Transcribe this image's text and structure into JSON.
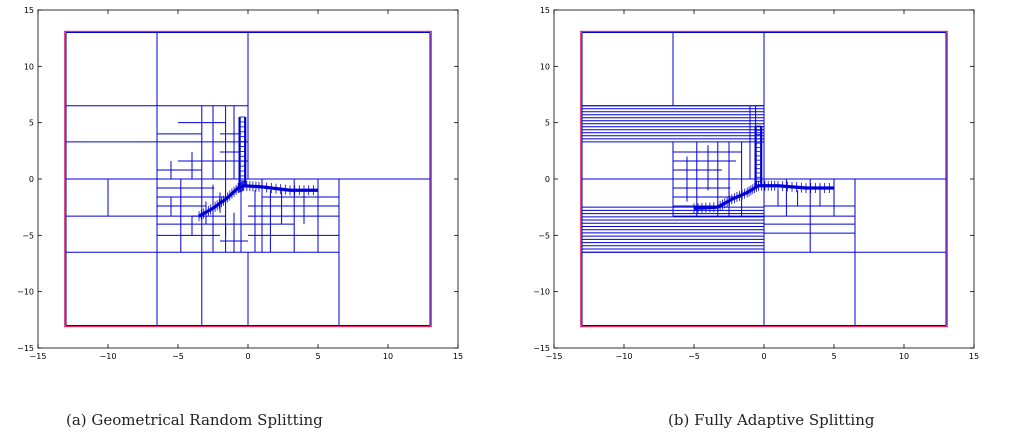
{
  "figures": [
    {
      "caption": "(a)  Geometrical Random Splitting",
      "chart_data": {
        "type": "diagram",
        "xlim": [
          -15,
          15
        ],
        "ylim": [
          -15,
          15
        ],
        "xticks": [
          -15,
          -10,
          -5,
          0,
          5,
          10,
          15
        ],
        "yticks": [
          -15,
          -10,
          -5,
          0,
          5,
          10,
          15
        ],
        "domain_boundary": {
          "color": "#e0003c",
          "rect": [
            -13,
            -13,
            13,
            13
          ]
        },
        "grid_color": "#0000d6",
        "segments": [
          [
            -13,
            -13,
            13,
            -13
          ],
          [
            13,
            -13,
            13,
            13
          ],
          [
            13,
            13,
            -13,
            13
          ],
          [
            -13,
            13,
            -13,
            -13
          ],
          [
            -6.5,
            -13,
            -6.5,
            13
          ],
          [
            0,
            13,
            0,
            0
          ],
          [
            -13,
            0,
            13,
            0
          ],
          [
            -13,
            6.5,
            0,
            6.5
          ],
          [
            -13,
            3.3,
            -6.5,
            3.3
          ],
          [
            -13,
            -6.5,
            6.5,
            -6.5
          ],
          [
            -10,
            0,
            -10,
            -3.3
          ],
          [
            -13,
            -3.3,
            -3.3,
            -3.3
          ],
          [
            -6.5,
            -3.3,
            -6.5,
            -6.5
          ],
          [
            -3.3,
            -6.5,
            -3.3,
            -13
          ],
          [
            0,
            -6.5,
            0,
            -13
          ],
          [
            6.5,
            0,
            6.5,
            -13
          ],
          [
            -6.5,
            -1.6,
            -1.6,
            -1.6
          ],
          [
            -6.5,
            -4,
            0,
            -4
          ],
          [
            -6.5,
            -5,
            -2,
            -5
          ],
          [
            -4.8,
            0,
            -4.8,
            -6.5
          ],
          [
            -3.3,
            6.5,
            -3.3,
            -6.5
          ],
          [
            -1.6,
            6.5,
            -1.6,
            -6.5
          ],
          [
            -5,
            5,
            -1.6,
            5
          ],
          [
            -6.5,
            4,
            -3.3,
            4
          ],
          [
            -6.5,
            3.3,
            0,
            3.3
          ],
          [
            -5,
            1.6,
            0,
            1.6
          ],
          [
            -6.5,
            0.8,
            -3.3,
            0.8
          ],
          [
            -2.5,
            6.5,
            -2.5,
            0
          ],
          [
            -4,
            2.4,
            -4,
            0
          ],
          [
            -5.5,
            1.6,
            -5.5,
            0
          ],
          [
            -2,
            4,
            -0.5,
            4
          ],
          [
            -1,
            6.5,
            -1,
            0
          ],
          [
            -2,
            2.4,
            -0.6,
            2.4
          ],
          [
            -6.5,
            -2.4,
            -3,
            -2.4
          ],
          [
            -5.5,
            -1.6,
            -5.5,
            -3.3
          ],
          [
            -2.5,
            -0.5,
            -2.5,
            -6.5
          ],
          [
            -1.6,
            -4,
            -1.6,
            -5
          ],
          [
            -4,
            -3.3,
            -4,
            -5
          ],
          [
            -2,
            -5.5,
            0,
            -5.5
          ],
          [
            -1,
            -3,
            -1,
            -6.5
          ],
          [
            -0.5,
            -1,
            -0.5,
            -6.5
          ],
          [
            0.5,
            -1,
            0.5,
            -6.5
          ],
          [
            1,
            0,
            1,
            -6.5
          ],
          [
            1.6,
            -1,
            1.6,
            -6.5
          ],
          [
            2.4,
            -1,
            2.4,
            -4
          ],
          [
            3.3,
            0,
            3.3,
            -6.5
          ],
          [
            4,
            -1,
            4,
            -4
          ],
          [
            5,
            0,
            5,
            -6.5
          ],
          [
            0,
            -2.4,
            6.5,
            -2.4
          ],
          [
            0,
            -3.3,
            6.5,
            -3.3
          ],
          [
            0,
            -4,
            3.3,
            -4
          ],
          [
            0,
            -5,
            6.5,
            -5
          ],
          [
            1,
            -1.6,
            6.5,
            -1.6
          ],
          [
            -6.5,
            -0.8,
            -2.4,
            -0.8
          ],
          [
            -4,
            -3.3,
            -1.6,
            -3.3
          ],
          [
            -3,
            -2,
            -3,
            -4
          ],
          [
            -2,
            -1.2,
            -2,
            -3
          ]
        ],
        "dense_path": [
          [
            -3.5,
            -3.3
          ],
          [
            -2.5,
            -2.6
          ],
          [
            -1.6,
            -1.8
          ],
          [
            -0.7,
            -0.8
          ],
          [
            -0.3,
            -0.6
          ],
          [
            1.0,
            -0.7
          ],
          [
            3.0,
            -1.0
          ],
          [
            5.0,
            -1.0
          ]
        ],
        "dense_vertical": [
          [
            -0.4,
            -0.6
          ],
          [
            -0.4,
            5.5
          ]
        ],
        "dense_vertical_x": [
          -0.6,
          -0.2
        ]
      }
    },
    {
      "caption": "(b)  Fully Adaptive Splitting",
      "chart_data": {
        "type": "diagram",
        "xlim": [
          -15,
          15
        ],
        "ylim": [
          -15,
          15
        ],
        "xticks": [
          -15,
          -10,
          -5,
          0,
          5,
          10,
          15
        ],
        "yticks": [
          -15,
          -10,
          -5,
          0,
          5,
          10,
          15
        ],
        "domain_boundary": {
          "color": "#e0003c",
          "rect": [
            -13,
            -13,
            13,
            13
          ]
        },
        "grid_color": "#0000d6",
        "segments": [
          [
            -13,
            -13,
            13,
            -13
          ],
          [
            13,
            -13,
            13,
            13
          ],
          [
            13,
            13,
            -13,
            13
          ],
          [
            -13,
            13,
            -13,
            -13
          ],
          [
            -6.5,
            13,
            -6.5,
            6.5
          ],
          [
            0,
            13,
            0,
            -13
          ],
          [
            -13,
            0,
            13,
            0
          ],
          [
            6.5,
            0,
            6.5,
            -13
          ],
          [
            0,
            -6.5,
            13,
            -6.5
          ],
          [
            -13,
            6.5,
            0,
            6.5
          ],
          [
            -13,
            -6.5,
            0,
            -6.5
          ],
          [
            -6.5,
            3.3,
            -6.5,
            -3.3
          ],
          [
            -6.5,
            -3.3,
            6.5,
            -3.3
          ],
          [
            -4.8,
            3.3,
            -4.8,
            -3.3
          ],
          [
            -3.3,
            3.3,
            -3.3,
            -3.3
          ],
          [
            -2.5,
            3.3,
            -2.5,
            -3.3
          ],
          [
            -1.6,
            3.3,
            -1.6,
            -3.3
          ],
          [
            -4,
            3,
            -4,
            -1
          ],
          [
            -5.5,
            2,
            -5.5,
            -2
          ],
          [
            -6.5,
            2.4,
            -1.6,
            2.4
          ],
          [
            -6.5,
            1.6,
            -2,
            1.6
          ],
          [
            -6.5,
            0.8,
            -3,
            0.8
          ],
          [
            -6.5,
            -0.8,
            -2.4,
            -0.8
          ],
          [
            -6.5,
            -1.6,
            -1.6,
            -1.6
          ],
          [
            -6.5,
            -2.4,
            -3.3,
            -2.4
          ],
          [
            -1,
            6.5,
            -1,
            0
          ],
          [
            -0.6,
            6.5,
            -0.6,
            0
          ],
          [
            0,
            -4,
            6.5,
            -4
          ],
          [
            0,
            -4.8,
            6.5,
            -4.8
          ],
          [
            0,
            -2.4,
            6.5,
            -2.4
          ],
          [
            1.6,
            0,
            1.6,
            -3.3
          ],
          [
            3.3,
            0,
            3.3,
            -6.5
          ],
          [
            5,
            0,
            5,
            -3.3
          ],
          [
            4,
            -0.5,
            4,
            -2.4
          ],
          [
            2.4,
            -1,
            2.4,
            -2.4
          ],
          [
            1,
            -1,
            1,
            -2.4
          ]
        ],
        "hstripes_top": {
          "x0": -13,
          "x1": 0,
          "y_from": 3.3,
          "y_to": 6.5,
          "count": 12
        },
        "hstripes_bottom": {
          "x0": -13,
          "x1": 0,
          "y_from": -6.5,
          "y_to": -2.5,
          "count": 14
        },
        "dense_path": [
          [
            -5,
            -2.6
          ],
          [
            -3.3,
            -2.5
          ],
          [
            -2.3,
            -1.8
          ],
          [
            -1.2,
            -1.2
          ],
          [
            -0.4,
            -0.6
          ],
          [
            1.0,
            -0.6
          ],
          [
            3.0,
            -0.8
          ],
          [
            5.0,
            -0.8
          ]
        ],
        "dense_vertical": [
          [
            -0.4,
            -0.6
          ],
          [
            -0.4,
            4.7
          ]
        ],
        "dense_vertical_x": [
          -0.6,
          -0.2
        ]
      }
    }
  ]
}
